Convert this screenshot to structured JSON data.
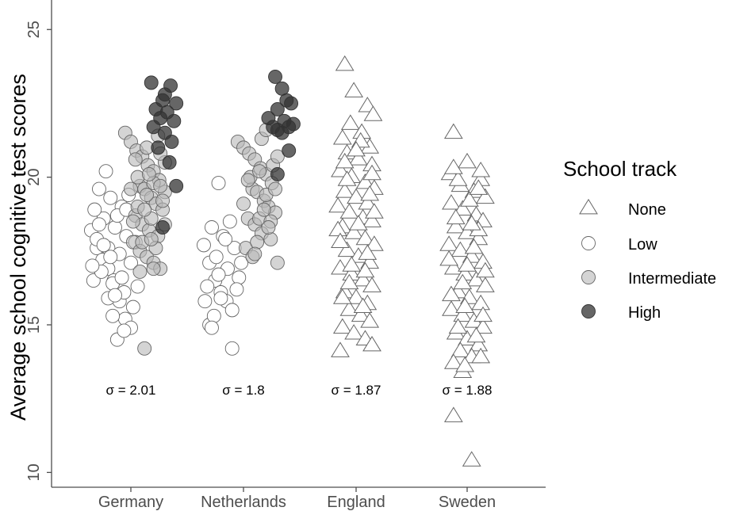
{
  "chart_data": {
    "type": "scatter",
    "title": "",
    "xlabel": "",
    "ylabel": "Average school cognitive test scores",
    "ylim": [
      9.5,
      26
    ],
    "yticks": [
      10,
      15,
      20,
      25
    ],
    "categories": [
      "Germany",
      "Netherlands",
      "England",
      "Sweden"
    ],
    "legend": {
      "title": "School track",
      "placement": "right",
      "entries": [
        {
          "name": "None",
          "shape": "triangle",
          "fill": "#ffffff"
        },
        {
          "name": "Low",
          "shape": "circle",
          "fill": "#ffffff"
        },
        {
          "name": "Intermediate",
          "shape": "circle",
          "fill": "#cccccc"
        },
        {
          "name": "High",
          "shape": "circle",
          "fill": "#555555"
        }
      ]
    },
    "annotations": [
      {
        "category": "Germany",
        "text": "σ = 2.01",
        "y": 12.8
      },
      {
        "category": "Netherlands",
        "text": "σ = 1.8",
        "y": 12.8
      },
      {
        "category": "England",
        "text": "σ = 1.87",
        "y": 12.8
      },
      {
        "category": "Sweden",
        "text": "σ = 1.88",
        "y": 12.8
      }
    ],
    "series": [
      {
        "category": "Germany",
        "track": "Low",
        "points": [
          [
            -0.35,
            18.2
          ],
          [
            -0.3,
            17.6
          ],
          [
            -0.25,
            17.2
          ],
          [
            -0.2,
            16.9
          ],
          [
            -0.15,
            16.5
          ],
          [
            -0.33,
            16.5
          ],
          [
            -0.1,
            15.8
          ],
          [
            -0.05,
            15.2
          ],
          [
            0.0,
            14.9
          ],
          [
            -0.12,
            14.5
          ],
          [
            -0.22,
            20.2
          ],
          [
            -0.28,
            19.6
          ],
          [
            -0.18,
            19.3
          ],
          [
            -0.08,
            19.0
          ],
          [
            -0.24,
            18.6
          ],
          [
            -0.14,
            18.3
          ],
          [
            -0.04,
            18.0
          ],
          [
            -0.3,
            17.9
          ],
          [
            -0.2,
            17.6
          ],
          [
            -0.1,
            17.4
          ],
          [
            0.0,
            17.1
          ],
          [
            -0.26,
            16.8
          ],
          [
            -0.16,
            16.4
          ],
          [
            -0.06,
            16.1
          ],
          [
            -0.2,
            15.9
          ],
          [
            0.02,
            15.6
          ],
          [
            -0.34,
            17.0
          ],
          [
            -0.12,
            18.7
          ],
          [
            -0.02,
            19.4
          ],
          [
            -0.16,
            15.3
          ],
          [
            -0.08,
            16.6
          ],
          [
            0.04,
            17.8
          ],
          [
            -0.28,
            18.4
          ],
          [
            -0.18,
            17.3
          ],
          [
            -0.06,
            14.8
          ],
          [
            -0.14,
            16.0
          ],
          [
            -0.24,
            17.7
          ],
          [
            -0.04,
            18.9
          ],
          [
            0.06,
            16.3
          ],
          [
            -0.32,
            18.9
          ]
        ]
      },
      {
        "category": "Germany",
        "track": "Intermediate",
        "points": [
          [
            -0.05,
            21.5
          ],
          [
            0.0,
            21.2
          ],
          [
            0.05,
            20.9
          ],
          [
            0.1,
            20.7
          ],
          [
            0.15,
            20.4
          ],
          [
            0.2,
            20.2
          ],
          [
            0.25,
            19.9
          ],
          [
            0.08,
            19.7
          ],
          [
            0.12,
            19.6
          ],
          [
            0.18,
            19.3
          ],
          [
            0.22,
            19.1
          ],
          [
            0.28,
            18.9
          ],
          [
            0.04,
            18.7
          ],
          [
            0.1,
            18.4
          ],
          [
            0.16,
            18.2
          ],
          [
            0.24,
            18.0
          ],
          [
            0.02,
            17.8
          ],
          [
            0.08,
            17.5
          ],
          [
            0.14,
            17.3
          ],
          [
            0.2,
            17.1
          ],
          [
            0.26,
            16.9
          ],
          [
            0.12,
            14.2
          ],
          [
            0.3,
            20.5
          ],
          [
            0.3,
            19.5
          ],
          [
            0.06,
            20.0
          ],
          [
            0.2,
            19.8
          ],
          [
            0.14,
            21.0
          ],
          [
            0.26,
            20.8
          ],
          [
            0.02,
            18.5
          ],
          [
            0.18,
            18.6
          ],
          [
            0.1,
            17.8
          ],
          [
            0.22,
            17.6
          ],
          [
            0.28,
            19.2
          ],
          [
            0.06,
            19.0
          ],
          [
            0.16,
            20.1
          ],
          [
            0.24,
            21.4
          ],
          [
            0.0,
            19.6
          ],
          [
            0.12,
            18.9
          ],
          [
            0.2,
            16.9
          ],
          [
            0.3,
            18.4
          ],
          [
            0.08,
            16.8
          ],
          [
            0.18,
            17.9
          ],
          [
            0.04,
            20.6
          ],
          [
            0.26,
            19.7
          ],
          [
            0.14,
            19.4
          ]
        ]
      },
      {
        "category": "Germany",
        "track": "High",
        "points": [
          [
            0.18,
            23.2
          ],
          [
            0.35,
            23.1
          ],
          [
            0.28,
            22.6
          ],
          [
            0.4,
            22.5
          ],
          [
            0.22,
            22.3
          ],
          [
            0.32,
            22.2
          ],
          [
            0.26,
            22.0
          ],
          [
            0.38,
            21.9
          ],
          [
            0.2,
            21.7
          ],
          [
            0.3,
            21.5
          ],
          [
            0.36,
            21.2
          ],
          [
            0.24,
            21.0
          ],
          [
            0.34,
            20.5
          ],
          [
            0.4,
            19.7
          ],
          [
            0.28,
            18.3
          ],
          [
            0.3,
            22.8
          ]
        ]
      },
      {
        "category": "Netherlands",
        "track": "Low",
        "points": [
          [
            -0.35,
            17.7
          ],
          [
            -0.3,
            17.1
          ],
          [
            -0.25,
            16.5
          ],
          [
            -0.2,
            16.1
          ],
          [
            -0.15,
            15.8
          ],
          [
            -0.3,
            15.0
          ],
          [
            -0.1,
            14.2
          ],
          [
            -0.22,
            19.8
          ],
          [
            -0.28,
            18.3
          ],
          [
            -0.18,
            18.0
          ],
          [
            -0.08,
            17.6
          ],
          [
            -0.24,
            17.3
          ],
          [
            -0.14,
            16.9
          ],
          [
            -0.04,
            16.6
          ],
          [
            -0.32,
            16.3
          ],
          [
            -0.2,
            15.9
          ],
          [
            -0.1,
            15.5
          ],
          [
            -0.26,
            15.3
          ],
          [
            -0.16,
            17.9
          ],
          [
            -0.06,
            16.2
          ],
          [
            -0.12,
            18.5
          ],
          [
            -0.34,
            15.8
          ],
          [
            -0.02,
            17.1
          ],
          [
            -0.22,
            16.7
          ],
          [
            -0.28,
            14.9
          ]
        ]
      },
      {
        "category": "Netherlands",
        "track": "Intermediate",
        "points": [
          [
            -0.05,
            21.2
          ],
          [
            0.0,
            21.0
          ],
          [
            0.05,
            20.8
          ],
          [
            0.1,
            20.6
          ],
          [
            0.15,
            20.3
          ],
          [
            0.2,
            20.1
          ],
          [
            0.25,
            19.8
          ],
          [
            0.08,
            19.6
          ],
          [
            0.12,
            19.5
          ],
          [
            0.18,
            19.2
          ],
          [
            0.22,
            19.0
          ],
          [
            0.28,
            18.8
          ],
          [
            0.04,
            18.6
          ],
          [
            0.1,
            18.4
          ],
          [
            0.16,
            18.1
          ],
          [
            0.24,
            17.9
          ],
          [
            0.02,
            17.6
          ],
          [
            0.08,
            17.3
          ],
          [
            0.3,
            17.1
          ],
          [
            0.14,
            18.6
          ],
          [
            0.2,
            19.4
          ],
          [
            0.26,
            20.4
          ],
          [
            0.06,
            20.0
          ],
          [
            0.16,
            21.3
          ],
          [
            0.24,
            18.5
          ],
          [
            0.0,
            19.1
          ],
          [
            0.12,
            17.8
          ],
          [
            0.3,
            20.7
          ],
          [
            0.18,
            18.9
          ],
          [
            0.04,
            19.9
          ],
          [
            0.2,
            21.6
          ],
          [
            0.1,
            17.4
          ],
          [
            0.28,
            19.6
          ],
          [
            0.14,
            20.2
          ],
          [
            0.22,
            18.3
          ]
        ]
      },
      {
        "category": "Netherlands",
        "track": "High",
        "points": [
          [
            0.28,
            23.4
          ],
          [
            0.34,
            23.0
          ],
          [
            0.38,
            22.6
          ],
          [
            0.42,
            22.5
          ],
          [
            0.3,
            22.3
          ],
          [
            0.22,
            22.0
          ],
          [
            0.36,
            21.9
          ],
          [
            0.4,
            21.7
          ],
          [
            0.3,
            21.6
          ],
          [
            0.34,
            21.5
          ],
          [
            0.4,
            20.9
          ],
          [
            0.3,
            20.1
          ],
          [
            0.44,
            21.8
          ],
          [
            0.26,
            21.7
          ]
        ]
      },
      {
        "category": "England",
        "track": "None",
        "points": [
          [
            -0.1,
            23.8
          ],
          [
            0.1,
            22.4
          ],
          [
            0.15,
            22.1
          ],
          [
            -0.05,
            21.8
          ],
          [
            0.05,
            21.5
          ],
          [
            -0.12,
            21.3
          ],
          [
            0.12,
            21.0
          ],
          [
            -0.08,
            20.8
          ],
          [
            0.02,
            20.6
          ],
          [
            0.14,
            20.4
          ],
          [
            -0.14,
            20.2
          ],
          [
            -0.04,
            20.0
          ],
          [
            0.08,
            19.8
          ],
          [
            0.16,
            19.6
          ],
          [
            -0.1,
            19.5
          ],
          [
            0.0,
            19.3
          ],
          [
            0.1,
            19.1
          ],
          [
            -0.16,
            19.0
          ],
          [
            -0.06,
            18.8
          ],
          [
            0.06,
            18.6
          ],
          [
            0.14,
            18.5
          ],
          [
            -0.12,
            18.3
          ],
          [
            -0.02,
            18.1
          ],
          [
            0.08,
            17.9
          ],
          [
            0.16,
            17.7
          ],
          [
            -0.08,
            17.5
          ],
          [
            0.02,
            17.3
          ],
          [
            0.12,
            17.1
          ],
          [
            -0.14,
            16.9
          ],
          [
            -0.04,
            16.7
          ],
          [
            0.06,
            16.5
          ],
          [
            0.14,
            16.3
          ],
          [
            -0.1,
            16.1
          ],
          [
            0.0,
            15.9
          ],
          [
            0.1,
            15.7
          ],
          [
            -0.06,
            15.5
          ],
          [
            0.04,
            15.3
          ],
          [
            0.12,
            15.1
          ],
          [
            -0.12,
            14.9
          ],
          [
            -0.02,
            14.7
          ],
          [
            0.08,
            14.5
          ],
          [
            -0.14,
            14.1
          ],
          [
            0.14,
            14.3
          ],
          [
            -0.02,
            22.9
          ],
          [
            0.04,
            21.2
          ],
          [
            -0.1,
            20.5
          ],
          [
            0.12,
            19.4
          ],
          [
            -0.16,
            18.2
          ],
          [
            0.1,
            17.4
          ],
          [
            -0.06,
            16.4
          ],
          [
            0.06,
            15.6
          ],
          [
            -0.12,
            15.9
          ],
          [
            0.16,
            18.8
          ],
          [
            0.0,
            20.9
          ],
          [
            -0.08,
            19.9
          ],
          [
            0.08,
            16.8
          ],
          [
            -0.14,
            17.8
          ],
          [
            0.14,
            20.1
          ],
          [
            0.02,
            18.4
          ],
          [
            -0.04,
            17.0
          ]
        ]
      },
      {
        "category": "Sweden",
        "track": "None",
        "points": [
          [
            -0.12,
            21.5
          ],
          [
            -0.15,
            20.1
          ],
          [
            0.0,
            20.5
          ],
          [
            0.12,
            19.9
          ],
          [
            -0.06,
            19.7
          ],
          [
            0.06,
            19.5
          ],
          [
            0.16,
            19.3
          ],
          [
            -0.14,
            19.1
          ],
          [
            -0.04,
            18.9
          ],
          [
            0.08,
            18.7
          ],
          [
            0.14,
            18.5
          ],
          [
            -0.1,
            18.3
          ],
          [
            0.0,
            18.1
          ],
          [
            0.1,
            17.9
          ],
          [
            -0.16,
            17.7
          ],
          [
            -0.06,
            17.5
          ],
          [
            0.04,
            17.3
          ],
          [
            0.14,
            17.1
          ],
          [
            -0.12,
            16.9
          ],
          [
            -0.02,
            16.7
          ],
          [
            0.08,
            16.5
          ],
          [
            0.16,
            16.3
          ],
          [
            -0.08,
            16.1
          ],
          [
            0.02,
            15.9
          ],
          [
            0.12,
            15.7
          ],
          [
            -0.14,
            15.5
          ],
          [
            -0.04,
            15.3
          ],
          [
            0.06,
            15.1
          ],
          [
            0.14,
            14.9
          ],
          [
            -0.1,
            14.7
          ],
          [
            0.0,
            14.5
          ],
          [
            0.1,
            14.3
          ],
          [
            -0.06,
            14.1
          ],
          [
            0.04,
            13.9
          ],
          [
            -0.12,
            13.7
          ],
          [
            -0.04,
            13.4
          ],
          [
            0.12,
            13.9
          ],
          [
            -0.12,
            11.9
          ],
          [
            0.04,
            10.4
          ],
          [
            -0.08,
            19.9
          ],
          [
            0.02,
            19.2
          ],
          [
            0.1,
            18.2
          ],
          [
            -0.16,
            17.2
          ],
          [
            0.16,
            16.8
          ],
          [
            -0.02,
            15.6
          ],
          [
            0.08,
            14.6
          ],
          [
            -0.1,
            18.6
          ],
          [
            0.06,
            17.6
          ],
          [
            -0.14,
            16.0
          ],
          [
            0.12,
            20.2
          ],
          [
            -0.04,
            16.4
          ],
          [
            0.14,
            15.3
          ],
          [
            0.0,
            17.0
          ],
          [
            -0.08,
            14.9
          ],
          [
            0.1,
            19.6
          ],
          [
            -0.12,
            20.3
          ],
          [
            0.04,
            18.4
          ],
          [
            -0.02,
            13.6
          ]
        ]
      }
    ]
  }
}
